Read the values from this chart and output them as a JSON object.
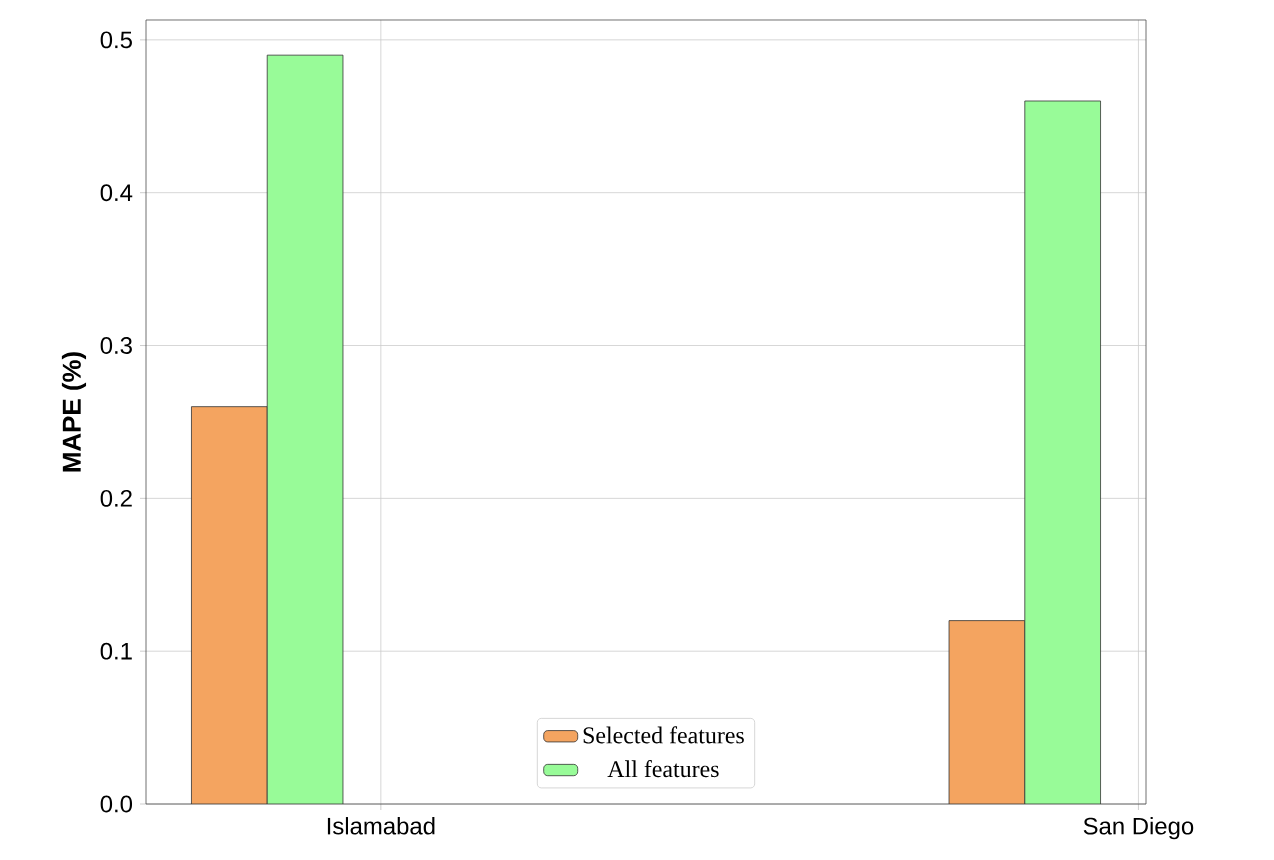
{
  "chart_data": {
    "type": "bar",
    "ylabel": "MAPE (%)",
    "categories": [
      "Islamabad",
      "San Diego"
    ],
    "series": [
      {
        "name": "Selected features",
        "color": "#f4a460",
        "values": [
          0.26,
          0.12
        ]
      },
      {
        "name": "All features",
        "color": "#98fb98",
        "values": [
          0.49,
          0.46
        ]
      }
    ],
    "ylim": [
      0,
      0.513
    ],
    "yticks": [
      {
        "value": 0,
        "label": "0.0"
      },
      {
        "value": 0.1,
        "label": "0.1"
      },
      {
        "value": 0.2,
        "label": "0.2"
      },
      {
        "value": 0.3,
        "label": "0.3"
      },
      {
        "value": 0.4,
        "label": "0.4"
      },
      {
        "value": 0.5,
        "label": "0.5"
      }
    ],
    "grid": true,
    "legend": "bottom"
  }
}
